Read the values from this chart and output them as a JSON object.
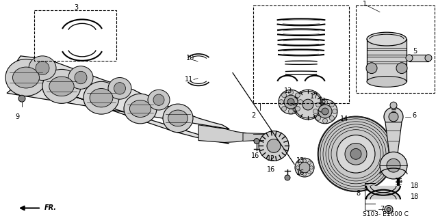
{
  "bg_color": "#ffffff",
  "footer_text": "S103- E1600 C",
  "label_color": "#000000",
  "line_color": "#000000",
  "part_color": "#e8e8e8",
  "dark_part": "#555555",
  "mid_part": "#aaaaaa"
}
